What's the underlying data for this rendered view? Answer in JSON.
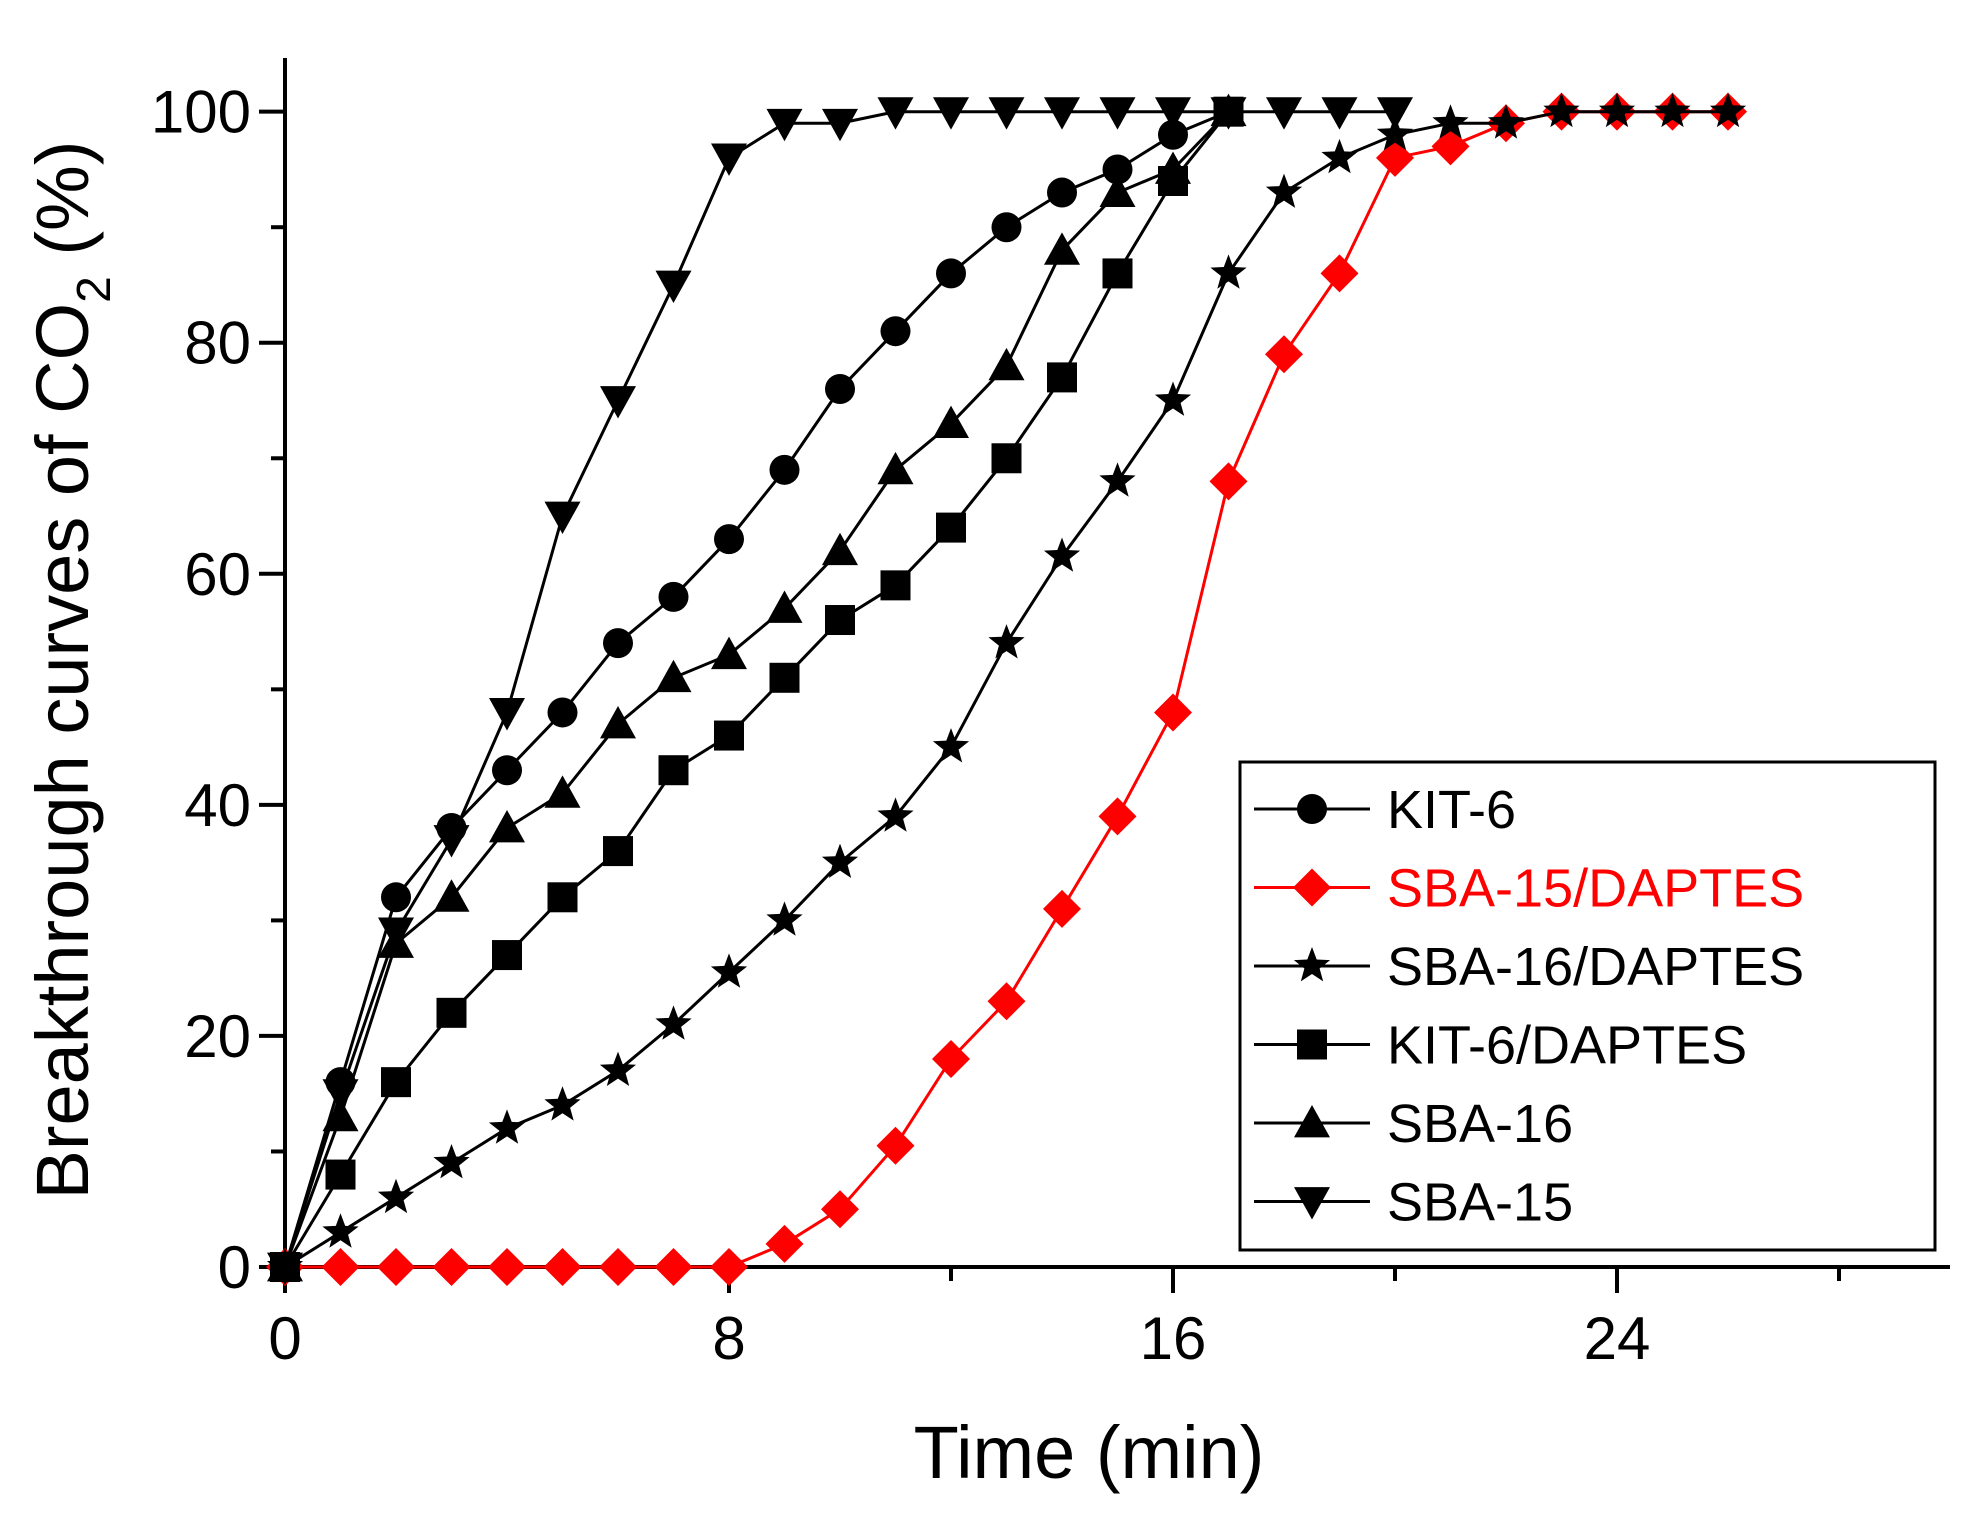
{
  "chart_data": {
    "type": "line",
    "title": "",
    "xlabel": "Time (min)",
    "ylabel_prefix": "Breakthrough curves of CO",
    "ylabel_subscript": "2",
    "ylabel_suffix": " (%)",
    "xlim": [
      0,
      30
    ],
    "ylim": [
      0,
      100
    ],
    "x_ticks": [
      0,
      8,
      16,
      24
    ],
    "x_tick_labels": [
      "0",
      "8",
      "16",
      "24"
    ],
    "y_ticks": [
      0,
      20,
      40,
      60,
      80,
      100
    ],
    "y_tick_labels": [
      "0",
      "20",
      "40",
      "60",
      "80",
      "100"
    ],
    "grid": false,
    "legend_position": "bottom-right",
    "series": [
      {
        "name": "KIT-6",
        "marker": "circle",
        "color": "#000000",
        "x": [
          0,
          1,
          2,
          3,
          4,
          5,
          6,
          7,
          8,
          9,
          10,
          11,
          12,
          13,
          14,
          15,
          16,
          17
        ],
        "y": [
          0,
          16,
          32,
          38,
          43,
          48,
          54,
          58,
          63,
          69,
          76,
          81,
          86,
          90,
          93,
          95,
          98,
          100
        ]
      },
      {
        "name": "SBA-15/DAPTES",
        "marker": "diamond",
        "color": "#ff0000",
        "x": [
          0,
          1,
          2,
          3,
          4,
          5,
          6,
          7,
          8,
          9,
          10,
          11,
          12,
          13,
          14,
          15,
          16,
          17,
          18,
          19,
          20,
          21,
          22,
          23,
          24,
          25,
          26
        ],
        "y": [
          0,
          0,
          0,
          0,
          0,
          0,
          0,
          0,
          0,
          2,
          5,
          10.5,
          18,
          23,
          31,
          39,
          48,
          68,
          79,
          86,
          96,
          97,
          99,
          100,
          100,
          100,
          100
        ]
      },
      {
        "name": "SBA-16/DAPTES",
        "marker": "star",
        "color": "#000000",
        "x": [
          0,
          1,
          2,
          3,
          4,
          5,
          6,
          7,
          8,
          9,
          10,
          11,
          12,
          13,
          14,
          15,
          16,
          17,
          18,
          19,
          20,
          21,
          22,
          23,
          24,
          25,
          26
        ],
        "y": [
          0,
          3,
          6,
          9,
          12,
          14,
          17,
          21,
          25.5,
          30,
          35,
          39,
          45,
          54,
          61.5,
          68,
          75,
          86,
          93,
          96,
          98,
          99,
          99,
          100,
          100,
          100,
          100
        ]
      },
      {
        "name": "KIT-6/DAPTES",
        "marker": "square",
        "color": "#000000",
        "x": [
          0,
          1,
          2,
          3,
          4,
          5,
          6,
          7,
          8,
          9,
          10,
          11,
          12,
          13,
          14,
          15,
          16,
          17
        ],
        "y": [
          0,
          8,
          16,
          22,
          27,
          32,
          36,
          43,
          46,
          51,
          56,
          59,
          64,
          70,
          77,
          86,
          94,
          100
        ]
      },
      {
        "name": "SBA-16",
        "marker": "triangle-up",
        "color": "#000000",
        "x": [
          0,
          1,
          2,
          3,
          4,
          5,
          6,
          7,
          8,
          9,
          10,
          11,
          12,
          13,
          14,
          15,
          16,
          17
        ],
        "y": [
          0,
          13,
          28,
          32,
          38,
          41,
          47,
          51,
          53,
          57,
          62,
          69,
          73,
          78,
          88,
          93,
          95,
          100
        ]
      },
      {
        "name": "SBA-15",
        "marker": "triangle-down",
        "color": "#000000",
        "x": [
          0,
          1,
          2,
          3,
          4,
          5,
          6,
          7,
          8,
          9,
          10,
          11,
          12,
          13,
          14,
          15,
          16,
          17,
          18,
          19,
          20
        ],
        "y": [
          0,
          15,
          29,
          37,
          48,
          65,
          75,
          85,
          96,
          99,
          99,
          100,
          100,
          100,
          100,
          100,
          100,
          100,
          100,
          100,
          100
        ]
      }
    ]
  }
}
